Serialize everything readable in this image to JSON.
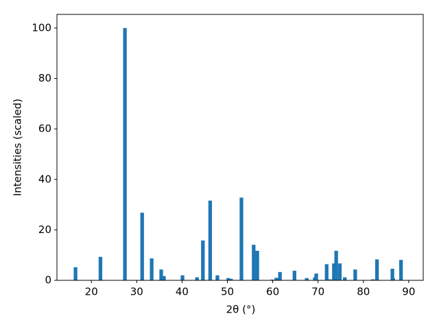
{
  "chart_data": {
    "type": "bar",
    "x_label": "2θ (°)",
    "y_label": "Intensities (scaled)",
    "x": [
      16.5,
      22.0,
      27.4,
      31.2,
      33.3,
      35.4,
      36.0,
      40.1,
      43.3,
      44.6,
      46.2,
      47.8,
      50.2,
      50.8,
      53.1,
      55.8,
      56.6,
      59.9,
      60.8,
      61.6,
      64.8,
      67.5,
      69.3,
      69.6,
      71.9,
      72.6,
      73.5,
      74.0,
      74.8,
      75.9,
      78.2,
      82.1,
      83.0,
      86.4,
      86.6,
      88.3
    ],
    "values": [
      5.2,
      9.3,
      100,
      26.8,
      8.7,
      4.3,
      1.7,
      2.0,
      1.2,
      15.8,
      31.6,
      2.0,
      0.9,
      0.6,
      32.8,
      14.1,
      11.7,
      0.3,
      1.0,
      3.3,
      3.8,
      0.9,
      1.2,
      2.7,
      6.4,
      0.4,
      6.7,
      11.7,
      6.7,
      1.2,
      4.3,
      0.4,
      8.3,
      4.6,
      0.8,
      8.1
    ],
    "color": "#1f77b4",
    "xlim": [
      12.4,
      93.2
    ],
    "xticks": [
      20,
      30,
      40,
      50,
      60,
      70,
      80,
      90
    ],
    "ylim": [
      0,
      105.4
    ],
    "yticks": [
      0,
      20,
      40,
      60,
      80,
      100
    ],
    "grid": false
  }
}
